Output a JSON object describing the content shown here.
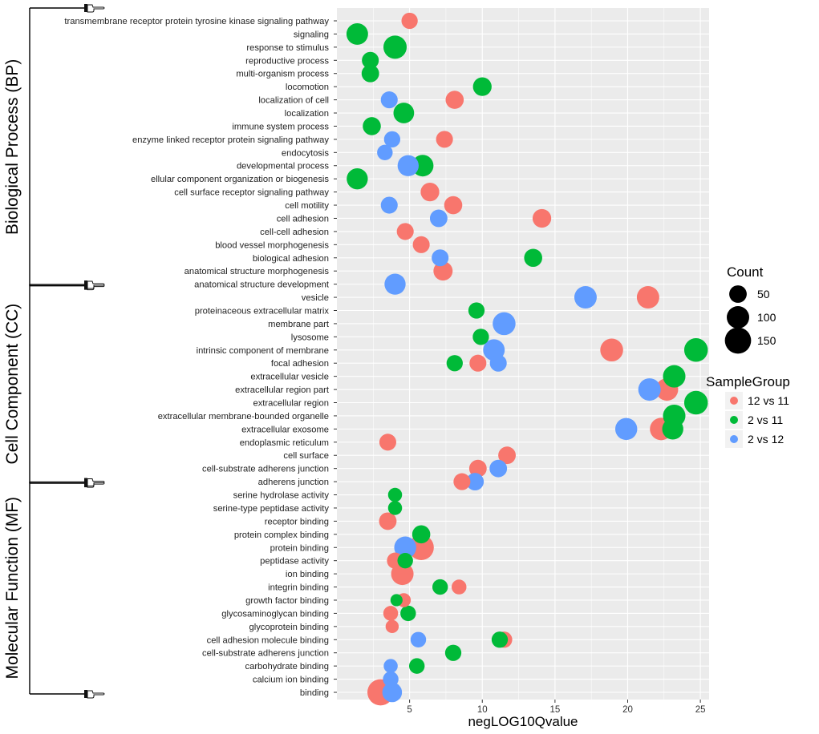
{
  "chart_data": {
    "type": "scatter",
    "xlabel": "negLOG10Qvalue",
    "ylabel": "",
    "x_ticks": [
      5,
      10,
      15,
      20,
      25
    ],
    "xlim": [
      0,
      25.6
    ],
    "grid": true,
    "categories": [
      "transmembrane receptor protein tyrosine kinase signaling pathway",
      "signaling",
      "response to stimulus",
      "reproductive process",
      "multi-organism process",
      "locomotion",
      "localization of cell",
      "localization",
      "immune system process",
      "enzyme linked receptor protein signaling pathway",
      "endocytosis",
      "developmental process",
      "ellular component organization or biogenesis",
      "cell surface receptor signaling pathway",
      "cell motility",
      "cell adhesion",
      "cell-cell adhesion",
      "blood vessel morphogenesis",
      "biological adhesion",
      "anatomical structure morphogenesis",
      "anatomical structure development",
      "vesicle",
      "proteinaceous extracellular matrix",
      "membrane part",
      "lysosome",
      "intrinsic component of membrane",
      "focal adhesion",
      "extracellular vesicle",
      "extracellular region part",
      "extracellular region",
      "extracellular membrane-bounded organelle",
      "extracellular exosome",
      "endoplasmic reticulum",
      "cell surface",
      "cell-substrate adherens junction",
      "adherens junction",
      "serine hydrolase activity",
      "serine-type peptidase activity",
      "receptor binding",
      "protein complex binding",
      "protein binding",
      "peptidase activity",
      "ion binding",
      "integrin binding",
      "growth factor binding",
      "glycosaminoglycan binding",
      "glycoprotein binding",
      "cell adhesion molecule binding",
      "cell-substrate adherens junction",
      "carbohydrate binding",
      "calcium ion binding",
      "binding"
    ],
    "groups": [
      {
        "label": "Biological Process (BP)",
        "start": 0,
        "end": 20
      },
      {
        "label": "Cell Component (CC)",
        "start": 21,
        "end": 35
      },
      {
        "label": "Molecular Function (MF)",
        "start": 36,
        "end": 51
      }
    ],
    "series": [
      {
        "name": "12 vs 11",
        "color": "#F8766D",
        "points": [
          {
            "y": 0,
            "x": 5.0,
            "count": 40
          },
          {
            "y": 6,
            "x": 8.1,
            "count": 55
          },
          {
            "y": 9,
            "x": 7.4,
            "count": 45
          },
          {
            "y": 13,
            "x": 6.4,
            "count": 60
          },
          {
            "y": 14,
            "x": 8.0,
            "count": 55
          },
          {
            "y": 15,
            "x": 14.1,
            "count": 60
          },
          {
            "y": 16,
            "x": 4.7,
            "count": 45
          },
          {
            "y": 17,
            "x": 5.8,
            "count": 45
          },
          {
            "y": 19,
            "x": 7.3,
            "count": 65
          },
          {
            "y": 21,
            "x": 21.4,
            "count": 100
          },
          {
            "y": 25,
            "x": 18.9,
            "count": 105
          },
          {
            "y": 26,
            "x": 9.7,
            "count": 45
          },
          {
            "y": 28,
            "x": 22.7,
            "count": 100
          },
          {
            "y": 31,
            "x": 22.3,
            "count": 100
          },
          {
            "y": 32,
            "x": 3.5,
            "count": 45
          },
          {
            "y": 33,
            "x": 11.7,
            "count": 50
          },
          {
            "y": 34,
            "x": 9.7,
            "count": 50
          },
          {
            "y": 35,
            "x": 8.6,
            "count": 45
          },
          {
            "y": 38,
            "x": 3.5,
            "count": 50
          },
          {
            "y": 40,
            "x": 5.8,
            "count": 135
          },
          {
            "y": 41,
            "x": 4.0,
            "count": 40
          },
          {
            "y": 42,
            "x": 4.5,
            "count": 100
          },
          {
            "y": 43,
            "x": 8.4,
            "count": 30
          },
          {
            "y": 44,
            "x": 4.6,
            "count": 25
          },
          {
            "y": 45,
            "x": 3.7,
            "count": 30
          },
          {
            "y": 46,
            "x": 3.8,
            "count": 20
          },
          {
            "y": 47,
            "x": 11.5,
            "count": 40
          },
          {
            "y": 51,
            "x": 3.0,
            "count": 150
          }
        ]
      },
      {
        "name": "2 vs 11",
        "color": "#00BA38",
        "points": [
          {
            "y": 1,
            "x": 1.4,
            "count": 90
          },
          {
            "y": 2,
            "x": 4.0,
            "count": 110
          },
          {
            "y": 3,
            "x": 2.3,
            "count": 45
          },
          {
            "y": 4,
            "x": 2.3,
            "count": 50
          },
          {
            "y": 5,
            "x": 10.0,
            "count": 60
          },
          {
            "y": 7,
            "x": 4.6,
            "count": 80
          },
          {
            "y": 8,
            "x": 2.4,
            "count": 55
          },
          {
            "y": 11,
            "x": 5.9,
            "count": 90
          },
          {
            "y": 12,
            "x": 1.4,
            "count": 85
          },
          {
            "y": 18,
            "x": 13.5,
            "count": 55
          },
          {
            "y": 22,
            "x": 9.6,
            "count": 40
          },
          {
            "y": 24,
            "x": 9.9,
            "count": 40
          },
          {
            "y": 25,
            "x": 24.7,
            "count": 115
          },
          {
            "y": 26,
            "x": 8.1,
            "count": 40
          },
          {
            "y": 27,
            "x": 23.2,
            "count": 100
          },
          {
            "y": 29,
            "x": 24.7,
            "count": 115
          },
          {
            "y": 30,
            "x": 23.2,
            "count": 100
          },
          {
            "y": 31,
            "x": 23.1,
            "count": 85
          },
          {
            "y": 36,
            "x": 4.0,
            "count": 25
          },
          {
            "y": 37,
            "x": 4.0,
            "count": 25
          },
          {
            "y": 39,
            "x": 5.8,
            "count": 55
          },
          {
            "y": 41,
            "x": 4.7,
            "count": 35
          },
          {
            "y": 43,
            "x": 7.1,
            "count": 35
          },
          {
            "y": 44,
            "x": 4.1,
            "count": 15
          },
          {
            "y": 45,
            "x": 4.9,
            "count": 35
          },
          {
            "y": 47,
            "x": 11.2,
            "count": 40
          },
          {
            "y": 48,
            "x": 8.0,
            "count": 40
          },
          {
            "y": 49,
            "x": 5.5,
            "count": 35
          }
        ]
      },
      {
        "name": "2 vs 12",
        "color": "#619CFF",
        "points": [
          {
            "y": 6,
            "x": 3.6,
            "count": 45
          },
          {
            "y": 9,
            "x": 3.8,
            "count": 40
          },
          {
            "y": 10,
            "x": 3.3,
            "count": 35
          },
          {
            "y": 11,
            "x": 4.9,
            "count": 85
          },
          {
            "y": 14,
            "x": 3.6,
            "count": 45
          },
          {
            "y": 15,
            "x": 7.0,
            "count": 50
          },
          {
            "y": 18,
            "x": 7.1,
            "count": 45
          },
          {
            "y": 20,
            "x": 4.0,
            "count": 85
          },
          {
            "y": 21,
            "x": 17.1,
            "count": 100
          },
          {
            "y": 23,
            "x": 11.5,
            "count": 105
          },
          {
            "y": 25,
            "x": 10.8,
            "count": 90
          },
          {
            "y": 26,
            "x": 11.1,
            "count": 45
          },
          {
            "y": 28,
            "x": 21.5,
            "count": 100
          },
          {
            "y": 31,
            "x": 19.9,
            "count": 95
          },
          {
            "y": 34,
            "x": 11.1,
            "count": 50
          },
          {
            "y": 35,
            "x": 9.5,
            "count": 50
          },
          {
            "y": 40,
            "x": 4.7,
            "count": 95
          },
          {
            "y": 47,
            "x": 5.6,
            "count": 35
          },
          {
            "y": 50,
            "x": 3.7,
            "count": 35
          },
          {
            "y": 51,
            "x": 3.8,
            "count": 70
          },
          {
            "y": 49,
            "x": 3.7,
            "count": 25
          }
        ]
      }
    ],
    "legend_size": {
      "title": "Count",
      "entries": [
        50,
        100,
        150
      ]
    },
    "legend_color": {
      "title": "SampleGroup",
      "entries": [
        "12 vs 11",
        "2 vs 11",
        "2 vs 12"
      ]
    },
    "legend_placement": "right"
  }
}
